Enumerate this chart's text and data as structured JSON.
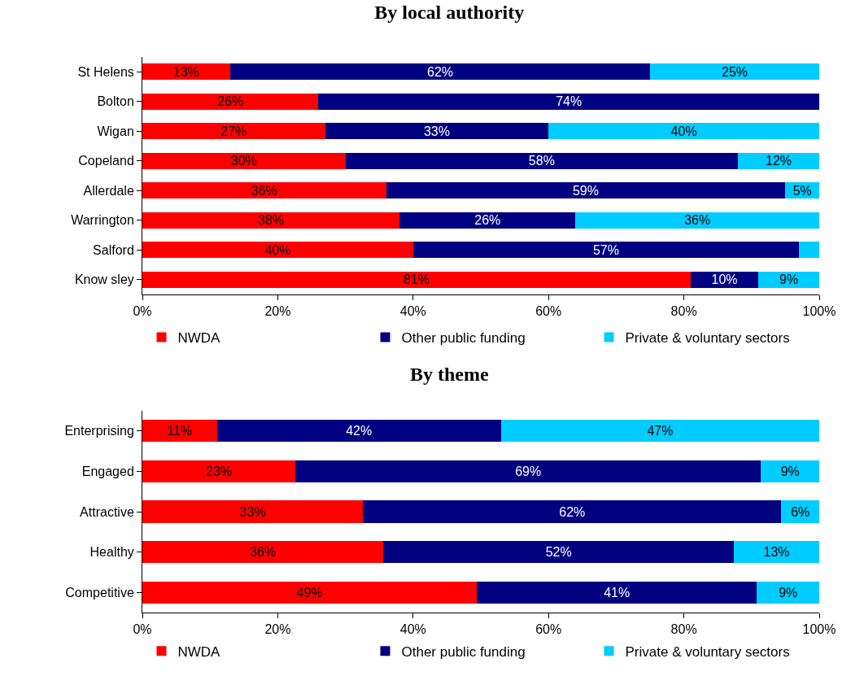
{
  "chart_data": [
    {
      "type": "bar",
      "orientation": "horizontal",
      "stacked": true,
      "title": "By local authority",
      "categories": [
        "St Helens",
        "Bolton",
        "Wigan",
        "Copeland",
        "Allerdale",
        "Warrington",
        "Salford",
        "Know sley"
      ],
      "series": [
        {
          "name": "NWDA",
          "color": "#ff0000",
          "values": [
            13,
            26,
            27,
            30,
            36,
            38,
            40,
            81
          ],
          "value_labels": [
            "13%",
            "26%",
            "27%",
            "30%",
            "36%",
            "38%",
            "40%",
            "81%"
          ]
        },
        {
          "name": "Other public funding",
          "color": "#000080",
          "values": [
            62,
            74,
            33,
            58,
            59,
            26,
            57,
            10
          ],
          "value_labels": [
            "62%",
            "74%",
            "33%",
            "58%",
            "59%",
            "26%",
            "57%",
            "10%"
          ]
        },
        {
          "name": "Private & voluntary sectors",
          "color": "#00ccff",
          "values": [
            25,
            null,
            40,
            12,
            5,
            36,
            3,
            9
          ],
          "value_labels": [
            "25%",
            null,
            "40%",
            "12%",
            "5%",
            "36%",
            null,
            "9%"
          ]
        }
      ],
      "xlim": [
        0,
        100
      ],
      "xticks": [
        {
          "value": 0,
          "label": "0%"
        },
        {
          "value": 20,
          "label": "20%"
        },
        {
          "value": 40,
          "label": "40%"
        },
        {
          "value": 60,
          "label": "60%"
        },
        {
          "value": 80,
          "label": "80%"
        },
        {
          "value": 100,
          "label": "100%"
        }
      ],
      "grid": false,
      "legend": "bottom"
    },
    {
      "type": "bar",
      "orientation": "horizontal",
      "stacked": true,
      "title": "By theme",
      "categories": [
        "Enterprising",
        "Engaged",
        "Attractive",
        "Healthy",
        "Competitive"
      ],
      "series": [
        {
          "name": "NWDA",
          "color": "#ff0000",
          "values": [
            11,
            22.6,
            32.6,
            35.6,
            49.4
          ],
          "value_labels": [
            "11%",
            "23%",
            "33%",
            "36%",
            "49%"
          ]
        },
        {
          "name": "Other public funding",
          "color": "#000080",
          "values": [
            42,
            68.8,
            61.8,
            51.8,
            41.4
          ],
          "value_labels": [
            "42%",
            "69%",
            "62%",
            "52%",
            "41%"
          ]
        },
        {
          "name": "Private & voluntary sectors",
          "color": "#00ccff",
          "values": [
            47,
            8.6,
            5.6,
            12.6,
            9.2
          ],
          "value_labels": [
            "47%",
            "9%",
            "6%",
            "13%",
            "9%"
          ]
        }
      ],
      "xlim": [
        0,
        100
      ],
      "xticks": [
        {
          "value": 0,
          "label": "0%"
        },
        {
          "value": 20,
          "label": "20%"
        },
        {
          "value": 40,
          "label": "40%"
        },
        {
          "value": 60,
          "label": "60%"
        },
        {
          "value": 80,
          "label": "80%"
        },
        {
          "value": 100,
          "label": "100%"
        }
      ],
      "grid": false,
      "legend": "bottom"
    }
  ]
}
